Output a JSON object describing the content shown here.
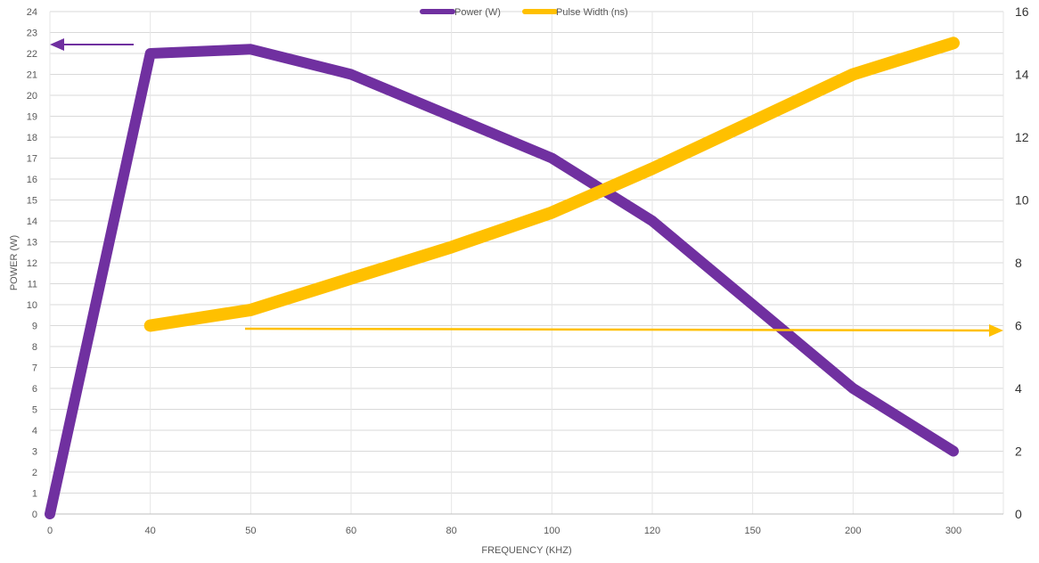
{
  "chart_data": {
    "type": "line",
    "x": [
      "0",
      "40",
      "50",
      "60",
      "80",
      "100",
      "120",
      "150",
      "200",
      "300"
    ],
    "xlabel": "FREQUENCY (KHZ)",
    "ylabel": "POWER (W)",
    "ylim": [
      0,
      24
    ],
    "y2lim": [
      0,
      16
    ],
    "yticks": [
      "0",
      "1",
      "2",
      "3",
      "4",
      "5",
      "6",
      "7",
      "8",
      "9",
      "10",
      "11",
      "12",
      "13",
      "14",
      "15",
      "16",
      "17",
      "18",
      "19",
      "20",
      "21",
      "22",
      "23",
      "24"
    ],
    "y2ticks": [
      "0",
      "2",
      "4",
      "6",
      "8",
      "10",
      "12",
      "14",
      "16"
    ],
    "legend_position": "top",
    "grid": true,
    "series": [
      {
        "name": "Power (W)",
        "axis": "left",
        "color": "#7030a0",
        "values": [
          0,
          22,
          22.2,
          21,
          19,
          17,
          14,
          10,
          6,
          3
        ]
      },
      {
        "name": "Pulse Width (ns)",
        "axis": "right",
        "color": "#ffc000",
        "values": [
          null,
          6,
          6.5,
          7.5,
          8.5,
          9.6,
          11,
          12.5,
          14,
          15
        ]
      }
    ],
    "annotations": [
      {
        "kind": "arrow",
        "color": "#7030a0",
        "direction": "left",
        "meaning": "Power (W) uses left axis"
      },
      {
        "kind": "arrow",
        "color": "#ffc000",
        "direction": "right",
        "meaning": "Pulse Width (ns) uses right axis"
      }
    ]
  }
}
